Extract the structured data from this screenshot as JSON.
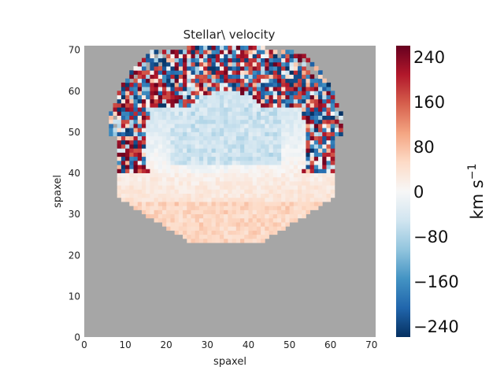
{
  "chart_data": {
    "type": "heatmap",
    "title": "Stellar\\ velocity",
    "xlabel": "spaxel",
    "ylabel": "spaxel",
    "xlim": [
      0,
      71
    ],
    "ylim": [
      0,
      71
    ],
    "xticks": [
      "0",
      "10",
      "20",
      "30",
      "40",
      "50",
      "60",
      "70"
    ],
    "yticks": [
      "0",
      "10",
      "20",
      "30",
      "40",
      "50",
      "60",
      "70"
    ],
    "colorbar": {
      "label": "km s",
      "label_exponent": "−1",
      "range": [
        -260,
        260
      ],
      "ticks": [
        "240",
        "160",
        "80",
        "0",
        "−80",
        "−160",
        "−240"
      ],
      "colormap": "RdBu_r"
    },
    "background_color": "#a6a6a6",
    "footprint": {
      "shape": "hexagonal IFU bundle",
      "center": [
        34.5,
        47
      ],
      "bottom_edge_y": 23,
      "top_edge_y": 71
    },
    "velocity_field": {
      "description_levels": {
        "south_region_kms": 60,
        "north_center_kms": -70,
        "noisy_rim_max_abs_kms": 260
      }
    }
  },
  "colors": {
    "background": "#a6a6a6",
    "red_end": "#67001f",
    "blue_end": "#053061",
    "zero": "#f7f7f7"
  }
}
